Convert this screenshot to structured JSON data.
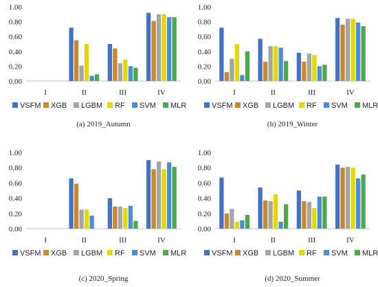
{
  "colors": {
    "VSFM": "#4472C4",
    "XGB": "#C9882F",
    "LGBM": "#A5A5A5",
    "RF": "#E3D900",
    "SVM": "#4A8FD6",
    "MLR": "#4EA84E",
    "axis": "#bfbfbf",
    "text": "#222222"
  },
  "chart_data": [
    {
      "type": "bar",
      "caption": "(a) 2019_Autumn",
      "categories": [
        "I",
        "II",
        "III",
        "IV"
      ],
      "ylim": [
        0,
        1.0
      ],
      "yticks": [
        "0.00",
        "0.20",
        "0.40",
        "0.60",
        "0.80",
        "1.00"
      ],
      "grid": false,
      "legend_position": "bottom",
      "series": [
        {
          "name": "VSFM",
          "values": [
            0,
            0.72,
            0.5,
            0.92
          ]
        },
        {
          "name": "XGB",
          "values": [
            0,
            0.55,
            0.44,
            0.81
          ]
        },
        {
          "name": "LGBM",
          "values": [
            0,
            0.21,
            0.24,
            0.9
          ]
        },
        {
          "name": "RF",
          "values": [
            0,
            0.5,
            0.29,
            0.9
          ]
        },
        {
          "name": "SVM",
          "values": [
            0,
            0.07,
            0.2,
            0.86
          ]
        },
        {
          "name": "MLR",
          "values": [
            0,
            0.09,
            0.18,
            0.86
          ]
        }
      ]
    },
    {
      "type": "bar",
      "caption": "(b) 2019_Winter",
      "categories": [
        "I",
        "II",
        "III",
        "IV"
      ],
      "ylim": [
        0,
        1.0
      ],
      "yticks": [
        "0.00",
        "0.20",
        "0.40",
        "0.60",
        "0.80",
        "1.00"
      ],
      "grid": false,
      "legend_position": "bottom",
      "series": [
        {
          "name": "VSFM",
          "values": [
            0.72,
            0.57,
            0.38,
            0.85
          ]
        },
        {
          "name": "XGB",
          "values": [
            0.12,
            0.26,
            0.26,
            0.76
          ]
        },
        {
          "name": "LGBM",
          "values": [
            0.3,
            0.47,
            0.37,
            0.84
          ]
        },
        {
          "name": "RF",
          "values": [
            0.5,
            0.47,
            0.35,
            0.84
          ]
        },
        {
          "name": "SVM",
          "values": [
            0.08,
            0.45,
            0.2,
            0.79
          ]
        },
        {
          "name": "MLR",
          "values": [
            0.4,
            0.27,
            0.22,
            0.74
          ]
        }
      ]
    },
    {
      "type": "bar",
      "caption": "(c) 2020_Spring",
      "categories": [
        "I",
        "II",
        "III",
        "IV"
      ],
      "ylim": [
        0,
        1.0
      ],
      "yticks": [
        "0.00",
        "0.20",
        "0.40",
        "0.60",
        "0.80",
        "1.00"
      ],
      "grid": false,
      "legend_position": "bottom",
      "series": [
        {
          "name": "VSFM",
          "values": [
            0,
            0.66,
            0.4,
            0.9
          ]
        },
        {
          "name": "XGB",
          "values": [
            0,
            0.59,
            0.29,
            0.78
          ]
        },
        {
          "name": "LGBM",
          "values": [
            0,
            0.25,
            0.29,
            0.88
          ]
        },
        {
          "name": "RF",
          "values": [
            0,
            0.25,
            0.27,
            0.78
          ]
        },
        {
          "name": "SVM",
          "values": [
            0,
            0.17,
            0.3,
            0.87
          ]
        },
        {
          "name": "MLR",
          "values": [
            0,
            0,
            0.1,
            0.81
          ]
        }
      ]
    },
    {
      "type": "bar",
      "caption": "(d) 2020_Summer",
      "categories": [
        "I",
        "II",
        "III",
        "IV"
      ],
      "ylim": [
        0,
        1.0
      ],
      "yticks": [
        "0.00",
        "0.20",
        "0.40",
        "0.60",
        "0.80",
        "1.00"
      ],
      "grid": false,
      "legend_position": "bottom",
      "series": [
        {
          "name": "VSFM",
          "values": [
            0.67,
            0.54,
            0.5,
            0.84
          ]
        },
        {
          "name": "XGB",
          "values": [
            0.2,
            0.37,
            0.36,
            0.8
          ]
        },
        {
          "name": "LGBM",
          "values": [
            0.26,
            0.36,
            0.35,
            0.81
          ]
        },
        {
          "name": "RF",
          "values": [
            0.09,
            0.45,
            0.27,
            0.8
          ]
        },
        {
          "name": "SVM",
          "values": [
            0.11,
            0.09,
            0.42,
            0.66
          ]
        },
        {
          "name": "MLR",
          "values": [
            0.18,
            0.32,
            0.42,
            0.71
          ]
        }
      ]
    }
  ]
}
